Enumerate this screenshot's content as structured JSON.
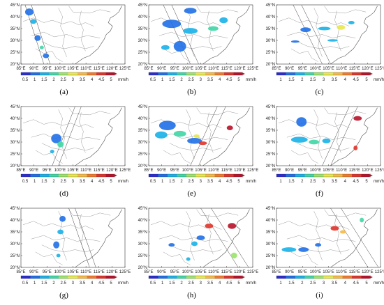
{
  "panels": [
    {
      "label": "(a)",
      "ticks": [
        "0.5",
        "1",
        "1.5",
        "2",
        "2.5",
        "3",
        "3.5",
        "4",
        "4.5",
        "5"
      ]
    },
    {
      "label": "(b)",
      "ticks": [
        "0.5",
        "1",
        "1.5",
        "2",
        "2.5",
        "3",
        "3.5",
        "4",
        "4.5",
        "5"
      ]
    },
    {
      "label": "(c)",
      "ticks": [
        "1",
        "1.5",
        "2",
        "2.5",
        "3",
        "3.5",
        "4",
        "4.5",
        "5"
      ]
    },
    {
      "label": "(d)",
      "ticks": [
        "0.5",
        "1",
        "1.5",
        "2",
        "2.5",
        "3",
        "3.5",
        "4",
        "4.5",
        "5"
      ]
    },
    {
      "label": "(e)",
      "ticks": [
        "0.5",
        "1",
        "1.5",
        "2",
        "2.5",
        "3",
        "3.5",
        "4",
        "4.5",
        "5"
      ]
    },
    {
      "label": "(f)",
      "ticks": [
        "1",
        "1.5",
        "2",
        "2.5",
        "3",
        "3.5",
        "4",
        "4.5",
        "5"
      ]
    },
    {
      "label": "(g)",
      "ticks": [
        "0.5",
        "1",
        "1.5",
        "2",
        "2.5",
        "3",
        "3.5",
        "4",
        "4.5",
        "5"
      ]
    },
    {
      "label": "(h)",
      "ticks": [
        "0.5",
        "1",
        "1.5",
        "2",
        "2.5",
        "3",
        "3.5",
        "4",
        "4.5",
        "5"
      ]
    },
    {
      "label": "(i)",
      "ticks": [
        "1",
        "1.5",
        "2",
        "2.5",
        "3",
        "3.5",
        "4",
        "4.5",
        "5"
      ]
    }
  ],
  "lat_labels": [
    "45°N",
    "40°N",
    "35°N",
    "30°N",
    "25°N",
    "20°N"
  ],
  "lon_labels": [
    "85°E",
    "90°E",
    "95°E",
    "100°E",
    "105°E",
    "110°E",
    "115°E",
    "120°E",
    "125°E"
  ],
  "unit": "mm/h",
  "colorbar_colors": [
    "#2c2ccf",
    "#1f6fe6",
    "#18b0e8",
    "#3fd6a6",
    "#9be36a",
    "#e8e84a",
    "#f5b942",
    "#f07a2a",
    "#e0342a",
    "#b8122a"
  ]
}
